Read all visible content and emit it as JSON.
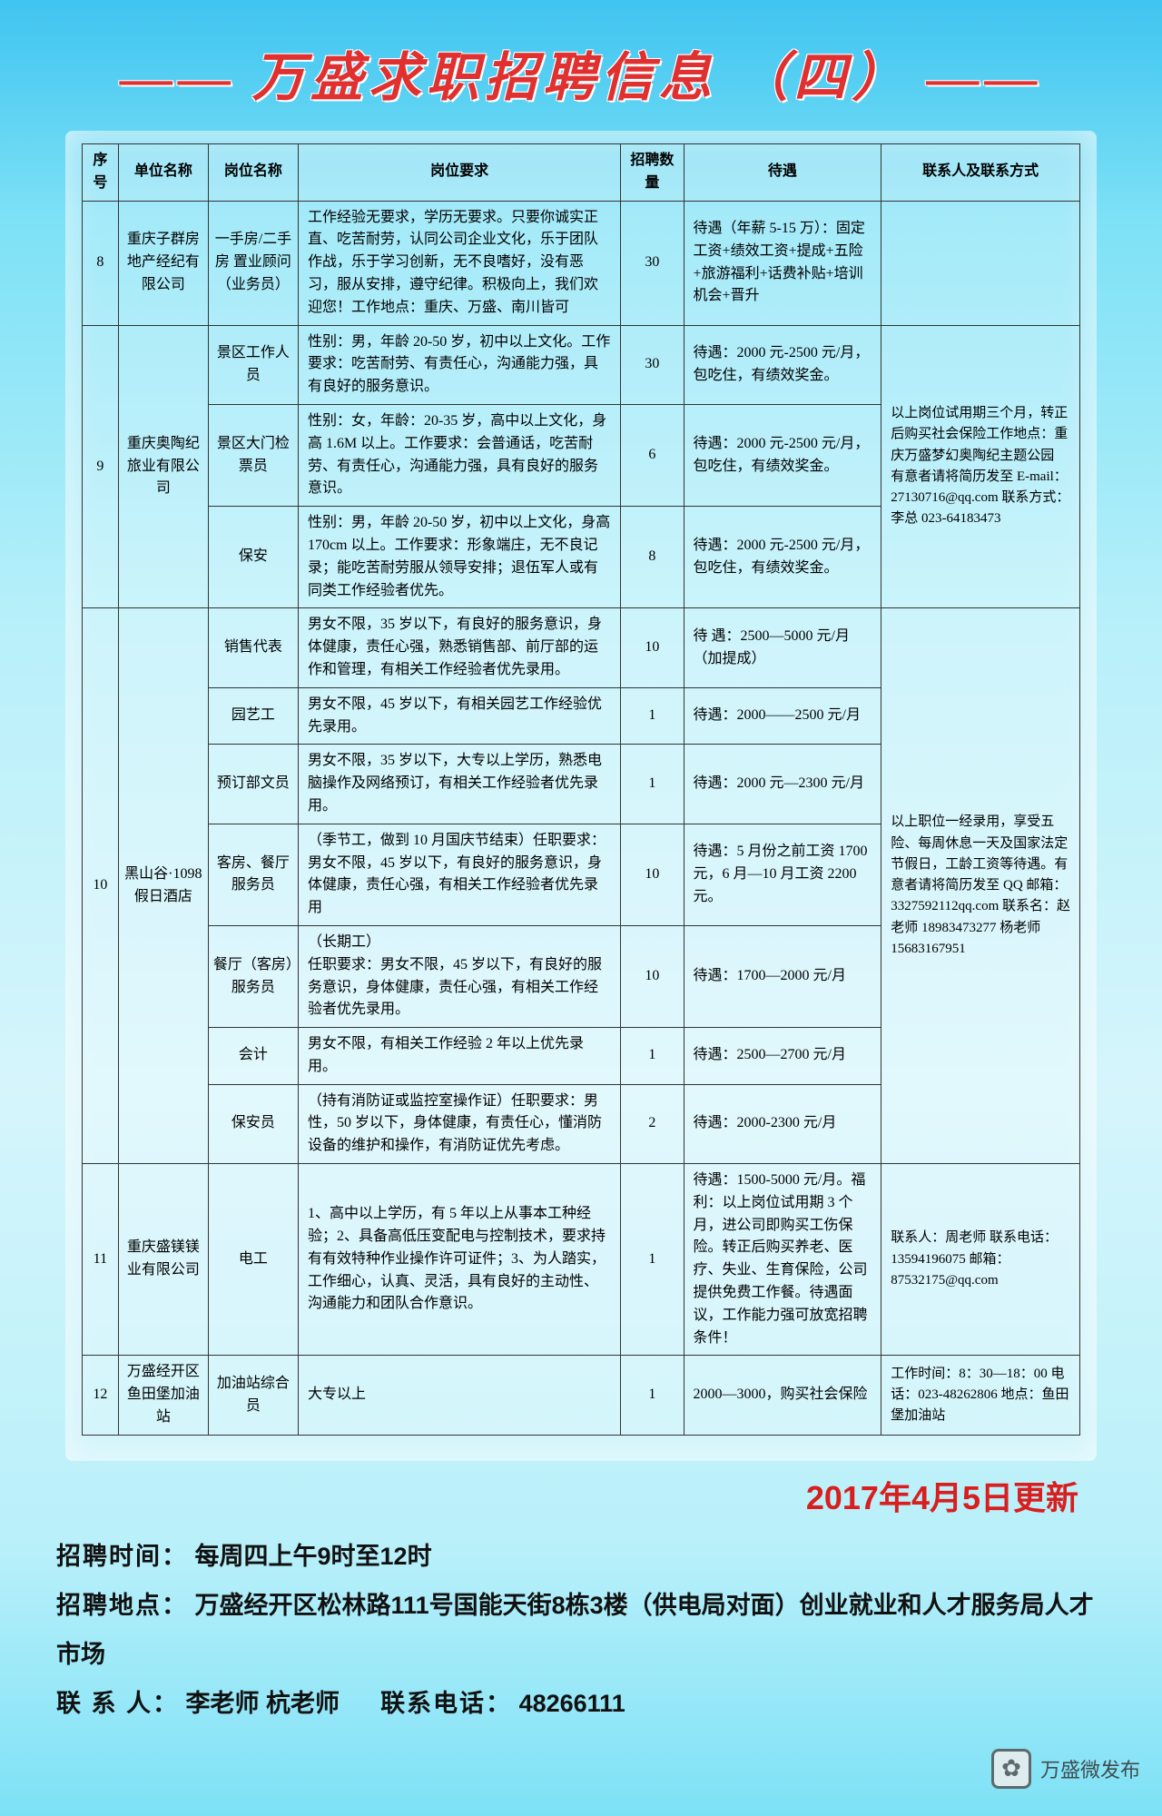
{
  "title": "万盛求职招聘信息 （四）",
  "headers": {
    "seq": "序号",
    "company": "单位名称",
    "position": "岗位名称",
    "requirement": "岗位要求",
    "count": "招聘数量",
    "treatment": "待遇",
    "contact": "联系人及联系方式"
  },
  "rows": [
    {
      "seq": "8",
      "company": "重庆子群房地产经纪有限公司",
      "position": "一手房/二手房 置业顾问（业务员）",
      "requirement": "工作经验无要求，学历无要求。只要你诚实正直、吃苦耐劳，认同公司企业文化，乐于团队作战，乐于学习创新，无不良嗜好，没有恶习，服从安排，遵守纪律。积极向上，我们欢迎您！工作地点：重庆、万盛、南川皆可",
      "count": "30",
      "treatment": "待遇（年薪 5-15 万）：固定工资+绩效工资+提成+五险+旅游福利+话费补贴+培训机会+晋升",
      "contact": ""
    },
    {
      "seq": "9",
      "company": "重庆奥陶纪旅业有限公司",
      "subrows": [
        {
          "position": "景区工作人员",
          "requirement": "性别：男，年龄 20-50 岁，初中以上文化。工作要求：吃苦耐劳、有责任心，沟通能力强，具有良好的服务意识。",
          "count": "30",
          "treatment": "待遇：2000 元-2500 元/月，包吃住，有绩效奖金。"
        },
        {
          "position": "景区大门检票员",
          "requirement": "性别：女，年龄：20-35 岁，高中以上文化，身高 1.6M 以上。工作要求：会普通话，吃苦耐劳、有责任心，沟通能力强，具有良好的服务意识。",
          "count": "6",
          "treatment": "待遇：2000 元-2500 元/月，包吃住，有绩效奖金。"
        },
        {
          "position": "保安",
          "requirement": "性别：男，年龄 20-50 岁，初中以上文化，身高 170cm 以上。工作要求：形象端庄，无不良记录；能吃苦耐劳服从领导安排；退伍军人或有同类工作经验者优先。",
          "count": "8",
          "treatment": "待遇：2000 元-2500 元/月，包吃住，有绩效奖金。"
        }
      ],
      "contact": "以上岗位试用期三个月，转正后购买社会保险工作地点：重庆万盛梦幻奥陶纪主题公园 有意者请将简历发至 E-mail：27130716@qq.com 联系方式：李总 023-64183473"
    },
    {
      "seq": "10",
      "company": "黑山谷·1098 假日酒店",
      "subrows": [
        {
          "position": "销售代表",
          "requirement": "男女不限，35 岁以下，有良好的服务意识，身体健康，责任心强，熟悉销售部、前厅部的运作和管理，有相关工作经验者优先录用。",
          "count": "10",
          "treatment": "待 遇：2500—5000 元/月（加提成）"
        },
        {
          "position": "园艺工",
          "requirement": "男女不限，45 岁以下，有相关园艺工作经验优先录用。",
          "count": "1",
          "treatment": "待遇：2000——2500 元/月"
        },
        {
          "position": "预订部文员",
          "requirement": "男女不限，35 岁以下，大专以上学历，熟悉电脑操作及网络预订，有相关工作经验者优先录用。",
          "count": "1",
          "treatment": "待遇：2000 元—2300 元/月"
        },
        {
          "position": "客房、餐厅服务员",
          "requirement": "（季节工，做到 10 月国庆节结束）任职要求：男女不限，45 岁以下，有良好的服务意识，身体健康，责任心强，有相关工作经验者优先录用",
          "count": "10",
          "treatment": "待遇：5 月份之前工资 1700 元，6 月—10 月工资 2200 元。"
        },
        {
          "position": "餐厅（客房）服务员",
          "requirement": "（长期工）\n任职要求：男女不限，45 岁以下，有良好的服务意识，身体健康，责任心强，有相关工作经验者优先录用。",
          "count": "10",
          "treatment": "待遇：1700—2000 元/月"
        },
        {
          "position": "会计",
          "requirement": "男女不限，有相关工作经验 2 年以上优先录用。",
          "count": "1",
          "treatment": "待遇：2500—2700 元/月"
        },
        {
          "position": "保安员",
          "requirement": "（持有消防证或监控室操作证）任职要求：男性，50 岁以下，身体健康，有责任心，懂消防设备的维护和操作，有消防证优先考虑。",
          "count": "2",
          "treatment": "待遇：2000-2300 元/月"
        }
      ],
      "contact": "以上职位一经录用，享受五险、每周休息一天及国家法定节假日，工龄工资等待遇。有意者请将简历发至 QQ 邮箱：3327592112qq.com 联系名：赵老师 18983473277 杨老师 15683167951"
    },
    {
      "seq": "11",
      "company": "重庆盛镁镁业有限公司",
      "position": "电工",
      "requirement": "1、高中以上学历，有 5 年以上从事本工种经验；2、具备高低压变配电与控制技术，要求持有有效特种作业操作许可证件；3、为人踏实，工作细心，认真、灵活，具有良好的主动性、沟通能力和团队合作意识。",
      "count": "1",
      "treatment": "待遇：1500-5000 元/月。福利：以上岗位试用期 3 个月，进公司即购买工伤保险。转正后购买养老、医疗、失业、生育保险，公司提供免费工作餐。待遇面议，工作能力强可放宽招聘条件！",
      "contact": "联系人：周老师 联系电话：13594196075 邮箱：87532175@qq.com"
    },
    {
      "seq": "12",
      "company": "万盛经开区鱼田堡加油站",
      "position": "加油站综合员",
      "requirement": "大专以上",
      "count": "1",
      "treatment": "2000—3000，购买社会保险",
      "contact": "工作时间：8：30—18：00 电话：023-48262806 地点：鱼田堡加油站"
    }
  ],
  "update_date": "2017年4月5日更新",
  "footer": {
    "time_label": "招聘时间：",
    "time_value": "每周四上午9时至12时",
    "addr_label": "招聘地点：",
    "addr_value": "万盛经开区松林路111号国能天街8栋3楼（供电局对面）创业就业和人才服务局人才市场",
    "contact_label": "联 系 人：",
    "contact_value": "李老师 杭老师",
    "tel_label": "联系电话：",
    "tel_value": "48266111"
  },
  "watermark": "万盛微发布"
}
